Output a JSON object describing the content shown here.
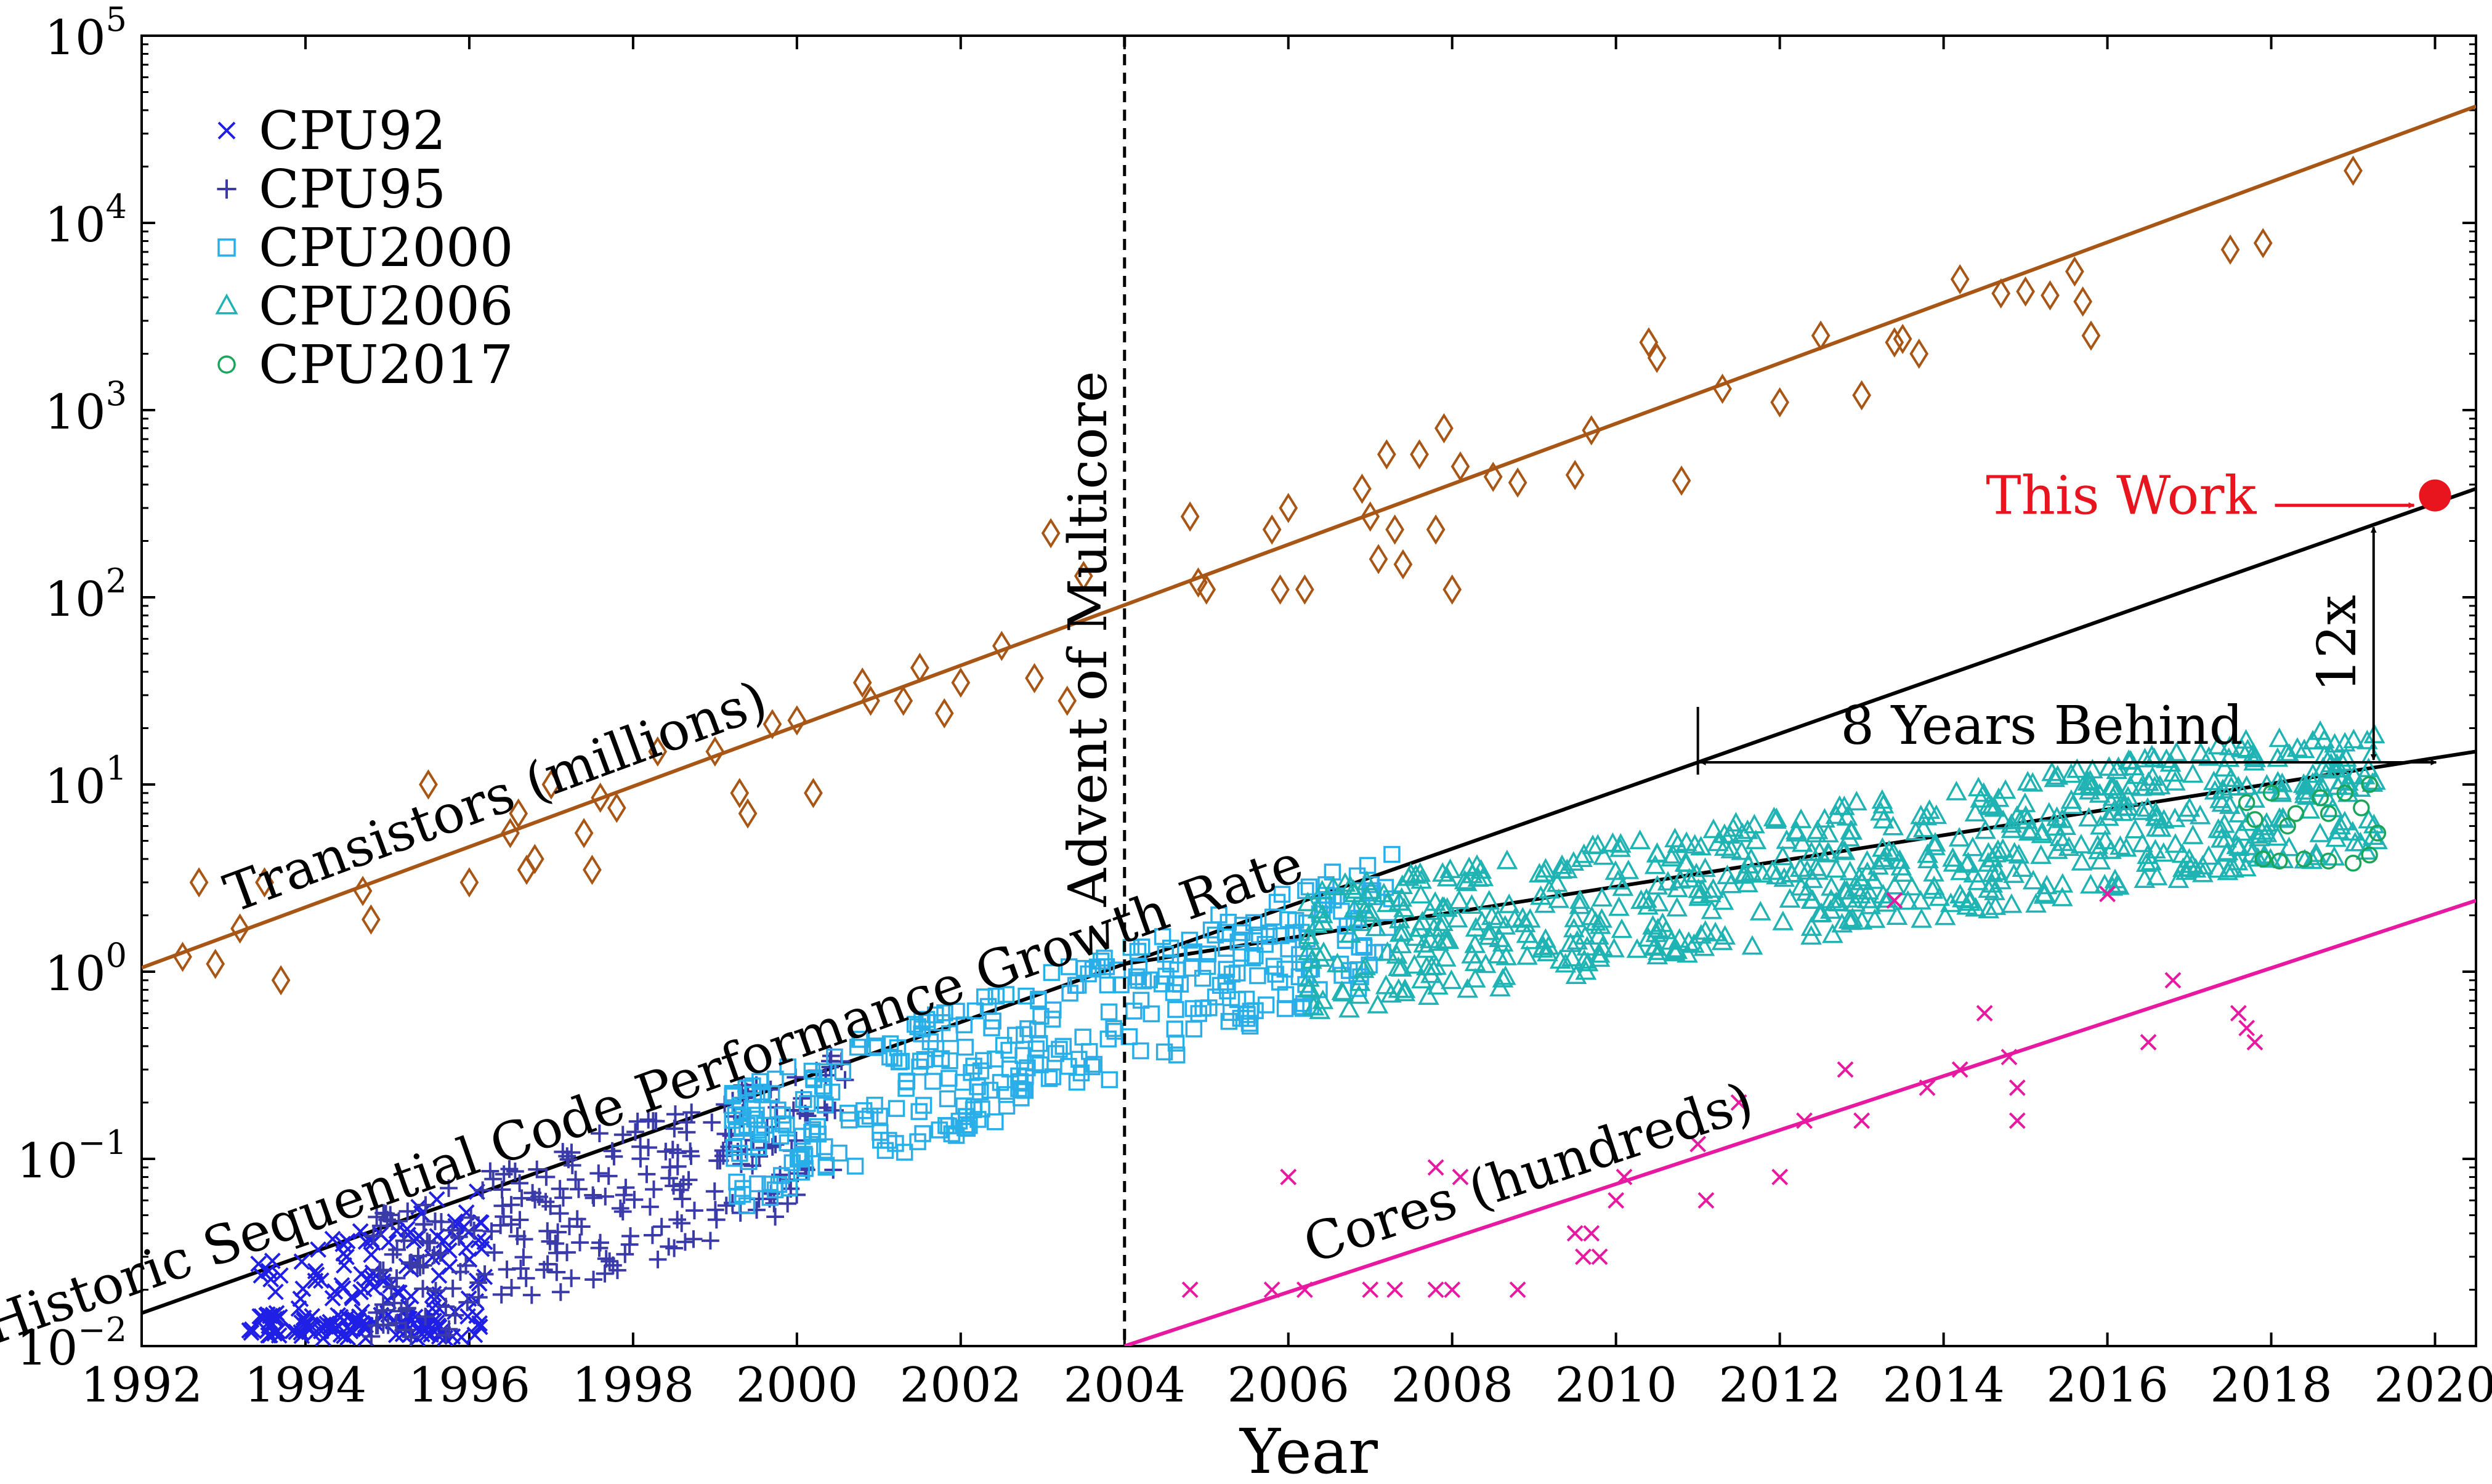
{
  "chart_data": {
    "type": "scatter",
    "title": "",
    "xlabel": "Year",
    "ylabel": "",
    "xlim": [
      1992,
      2020.5
    ],
    "ylim_log10": [
      -2,
      5
    ],
    "yscale": "log",
    "x_ticks": [
      "1992",
      "1994",
      "1996",
      "1998",
      "2000",
      "2002",
      "2004",
      "2006",
      "2008",
      "2010",
      "2012",
      "2014",
      "2016",
      "2018",
      "2020"
    ],
    "y_ticks": [
      {
        "base": "10",
        "exp": "−2"
      },
      {
        "base": "10",
        "exp": "−1"
      },
      {
        "base": "10",
        "exp": "0"
      },
      {
        "base": "10",
        "exp": "1"
      },
      {
        "base": "10",
        "exp": "2"
      },
      {
        "base": "10",
        "exp": "3"
      },
      {
        "base": "10",
        "exp": "4"
      },
      {
        "base": "10",
        "exp": "5"
      }
    ],
    "legend": {
      "position": "top-left",
      "entries": [
        {
          "label": "CPU92",
          "marker": "x",
          "color": "#1f1fe6"
        },
        {
          "label": "CPU95",
          "marker": "+",
          "color": "#3a3aa8"
        },
        {
          "label": "CPU2000",
          "marker": "square",
          "color": "#29aee8"
        },
        {
          "label": "CPU2006",
          "marker": "triangle",
          "color": "#1fb3b3"
        },
        {
          "label": "CPU2017",
          "marker": "circle",
          "color": "#1aa55a"
        }
      ]
    },
    "series": [
      {
        "name": "CPU92",
        "marker": "x",
        "color": "#1f1fe6",
        "x_range": [
          1993.3,
          1996.2
        ],
        "trend_start": [
          1992,
          0.015
        ],
        "trend_end": [
          2004,
          1.1
        ],
        "spread_log10": [
          -0.95,
          0.05
        ]
      },
      {
        "name": "CPU95",
        "marker": "+",
        "color": "#3a3aa8",
        "x_range": [
          1994.8,
          2000.6
        ],
        "trend_start": [
          1992,
          0.015
        ],
        "trend_end": [
          2004,
          1.1
        ],
        "spread_log10": [
          -0.7,
          0.1
        ]
      },
      {
        "name": "CPU2000",
        "marker": "square",
        "color": "#29aee8",
        "x_range": [
          1999.2,
          2007.3
        ],
        "trend_start": [
          1992,
          0.015
        ],
        "trend_end": [
          2004,
          1.1
        ],
        "spread_log10": [
          -0.6,
          0.1
        ]
      },
      {
        "name": "CPU2006",
        "marker": "triangle",
        "color": "#1fb3b3",
        "x_range": [
          2006.2,
          2019.3
        ],
        "trend_start": [
          2004,
          1.1
        ],
        "trend_end": [
          2020.5,
          15
        ],
        "spread_log10": [
          -0.45,
          0.25
        ]
      },
      {
        "name": "CPU2017",
        "marker": "circle",
        "color": "#1aa55a",
        "x_range": [
          2017.6,
          2019.3
        ],
        "points": [
          [
            2017.7,
            8
          ],
          [
            2018.0,
            9
          ],
          [
            2018.3,
            7
          ],
          [
            2018.6,
            8.5
          ],
          [
            2018.9,
            9
          ],
          [
            2019.2,
            10
          ],
          [
            2017.8,
            6.5
          ],
          [
            2018.2,
            6
          ],
          [
            2018.7,
            7
          ],
          [
            2019.1,
            7.5
          ],
          [
            2017.9,
            4
          ],
          [
            2018.1,
            3.9
          ],
          [
            2018.4,
            4
          ],
          [
            2018.7,
            3.9
          ],
          [
            2019.0,
            3.8
          ],
          [
            2019.2,
            4.2
          ],
          [
            2019.3,
            5.5
          ]
        ]
      },
      {
        "name": "Transistors (millions)",
        "marker": "diamond",
        "color": "#a85616",
        "points": [
          [
            1992.5,
            1.2
          ],
          [
            1992.7,
            3
          ],
          [
            1992.9,
            1.1
          ],
          [
            1993.2,
            1.7
          ],
          [
            1993.5,
            3
          ],
          [
            1993.7,
            0.9
          ],
          [
            1994.7,
            2.7
          ],
          [
            1994.8,
            1.9
          ],
          [
            1995.5,
            10
          ],
          [
            1996.0,
            3
          ],
          [
            1996.5,
            5.5
          ],
          [
            1996.6,
            7
          ],
          [
            1996.7,
            3.5
          ],
          [
            1996.8,
            4
          ],
          [
            1997.0,
            10
          ],
          [
            1997.4,
            5.5
          ],
          [
            1997.5,
            3.5
          ],
          [
            1997.6,
            8.5
          ],
          [
            1997.8,
            7.5
          ],
          [
            1998.3,
            15
          ],
          [
            1999.0,
            15
          ],
          [
            1999.3,
            9
          ],
          [
            1999.4,
            7
          ],
          [
            1999.7,
            21
          ],
          [
            2000.0,
            22
          ],
          [
            2000.2,
            9
          ],
          [
            2000.8,
            35
          ],
          [
            2000.9,
            28
          ],
          [
            2001.3,
            28
          ],
          [
            2001.5,
            42
          ],
          [
            2001.8,
            24
          ],
          [
            2002.0,
            35
          ],
          [
            2002.5,
            55
          ],
          [
            2002.9,
            37
          ],
          [
            2003.1,
            220
          ],
          [
            2003.3,
            28
          ],
          [
            2003.5,
            130
          ],
          [
            2004.8,
            270
          ],
          [
            2004.9,
            120
          ],
          [
            2005.0,
            110
          ],
          [
            2005.8,
            230
          ],
          [
            2005.9,
            110
          ],
          [
            2006.0,
            300
          ],
          [
            2006.2,
            110
          ],
          [
            2006.9,
            380
          ],
          [
            2007.0,
            270
          ],
          [
            2007.1,
            160
          ],
          [
            2007.2,
            580
          ],
          [
            2007.3,
            230
          ],
          [
            2007.4,
            150
          ],
          [
            2007.6,
            580
          ],
          [
            2007.8,
            230
          ],
          [
            2007.9,
            800
          ],
          [
            2008.0,
            110
          ],
          [
            2008.1,
            500
          ],
          [
            2008.5,
            440
          ],
          [
            2008.8,
            410
          ],
          [
            2009.5,
            450
          ],
          [
            2009.7,
            780
          ],
          [
            2010.4,
            2300
          ],
          [
            2010.5,
            1900
          ],
          [
            2010.8,
            420
          ],
          [
            2011.3,
            1300
          ],
          [
            2012.0,
            1100
          ],
          [
            2012.5,
            2500
          ],
          [
            2013.0,
            1200
          ],
          [
            2013.4,
            2300
          ],
          [
            2013.5,
            2400
          ],
          [
            2013.7,
            2000
          ],
          [
            2014.2,
            5000
          ],
          [
            2014.7,
            4200
          ],
          [
            2015.0,
            4300
          ],
          [
            2015.3,
            4100
          ],
          [
            2015.6,
            5500
          ],
          [
            2015.7,
            3800
          ],
          [
            2015.8,
            2500
          ],
          [
            2017.5,
            7200
          ],
          [
            2017.9,
            7800
          ],
          [
            2019.0,
            19000
          ]
        ],
        "trend_start": [
          1992,
          1.05
        ],
        "trend_end": [
          2020.5,
          42000
        ]
      },
      {
        "name": "Cores (hundreds)",
        "marker": "x",
        "color": "#e619a0",
        "points": [
          [
            2004.8,
            0.02
          ],
          [
            2005.8,
            0.02
          ],
          [
            2006.0,
            0.08
          ],
          [
            2006.2,
            0.02
          ],
          [
            2007.0,
            0.02
          ],
          [
            2007.3,
            0.02
          ],
          [
            2007.8,
            0.09
          ],
          [
            2007.8,
            0.02
          ],
          [
            2008.0,
            0.02
          ],
          [
            2008.1,
            0.08
          ],
          [
            2008.8,
            0.02
          ],
          [
            2009.5,
            0.04
          ],
          [
            2009.6,
            0.03
          ],
          [
            2009.7,
            0.04
          ],
          [
            2009.8,
            0.03
          ],
          [
            2010.0,
            0.06
          ],
          [
            2010.1,
            0.08
          ],
          [
            2011.0,
            0.12
          ],
          [
            2011.1,
            0.06
          ],
          [
            2011.5,
            0.2
          ],
          [
            2012.0,
            0.08
          ],
          [
            2012.3,
            0.16
          ],
          [
            2012.8,
            0.3
          ],
          [
            2013.0,
            0.16
          ],
          [
            2013.4,
            2.4
          ],
          [
            2013.8,
            0.24
          ],
          [
            2014.2,
            0.3
          ],
          [
            2014.5,
            0.6
          ],
          [
            2014.8,
            0.35
          ],
          [
            2014.9,
            0.24
          ],
          [
            2014.9,
            0.16
          ],
          [
            2016.0,
            2.6
          ],
          [
            2016.5,
            0.42
          ],
          [
            2016.8,
            0.9
          ],
          [
            2017.6,
            0.6
          ],
          [
            2017.7,
            0.5
          ],
          [
            2017.8,
            0.42
          ]
        ],
        "trend_start": [
          2004,
          0.01
        ],
        "trend_end": [
          2020.5,
          2.4
        ]
      }
    ],
    "lines": [
      {
        "name": "historic-growth",
        "points": [
          [
            1992,
            0.015
          ],
          [
            2004,
            1.1
          ],
          [
            2020.5,
            380
          ]
        ],
        "color": "#000000"
      },
      {
        "name": "multicore-trend",
        "points": [
          [
            2004,
            1.1
          ],
          [
            2020.5,
            15
          ]
        ],
        "color": "#000000"
      }
    ],
    "vertical_line": {
      "x": 2004,
      "style": "dashed",
      "label": "Advent of Multicore"
    },
    "annotations": {
      "transistors_label": "Transistors (millions)",
      "cores_label": "Cores (hundreds)",
      "growth_label": "Historic Sequential Code Performance Growth Rate",
      "behind_label": "8 Years Behind",
      "behind_range": [
        2011,
        2019.3
      ],
      "factor_label": "12x",
      "this_work_label": "This Work",
      "this_work_point": [
        2020,
        350
      ],
      "this_work_color": "#e8141e"
    }
  }
}
